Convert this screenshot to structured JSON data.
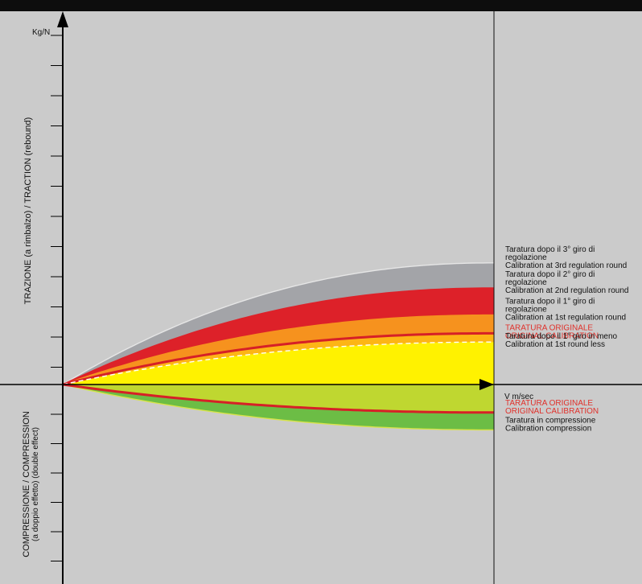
{
  "chart_data": {
    "type": "area",
    "ylabel_top": "TRAZIONE (a rimbalzo) / TRACTION (rebound)",
    "ylabel_bottom_line1": "COMPRESSIONE / COMPRESSION",
    "ylabel_bottom_line2": "(a doppio effetto)   (double effect)",
    "y_unit": "Kg/N",
    "x_unit": "V  m/sec",
    "curve_shape": "concave rise, saturating",
    "rebound_series": [
      {
        "key": "third",
        "color": "#a3a4a8",
        "edge": "#e6e6e6",
        "lines": [
          "Taratura dopo il 3° giro di",
          "regolazione",
          "Calibration at 3rd regulation round"
        ],
        "relative_level": 1.26
      },
      {
        "key": "second",
        "color": "#dd2129",
        "edge": "#dd2129",
        "lines": [
          "Taratura dopo il 2° giro di",
          "regolazione",
          "Calibration at 2nd regulation round"
        ],
        "relative_level": 1.0
      },
      {
        "key": "first",
        "color": "#f6921e",
        "edge": "#f6921e",
        "lines": [
          "Taratura dopo il 1° giro di",
          "regolazione",
          "Calibration at 1st regulation round"
        ],
        "relative_level": 0.72
      },
      {
        "key": "original",
        "color": "#fdb515",
        "edge": "#d62027",
        "line": true,
        "lines": [
          "TARATURA ORIGINALE",
          "ORIGINAL CALIBRATION"
        ],
        "label_color": "#e0312b",
        "relative_level": 0.53
      },
      {
        "key": "less",
        "color": "#fff200",
        "edge": "#ffffff",
        "dashed": true,
        "lines": [
          "Taratura dopo il 1° giro in meno",
          "Calibration at 1st round less"
        ],
        "relative_level": 0.44
      }
    ],
    "compression_series": [
      {
        "key": "comp_original",
        "color": "#bfd730",
        "edge": "#d62027",
        "line": true,
        "lines": [
          "TARATURA ORIGINALE",
          "ORIGINAL CALIBRATION"
        ],
        "label_color": "#e0312b",
        "relative_level": 0.29
      },
      {
        "key": "comp_setting",
        "color": "#6cbd45",
        "edge": "#d7e34a",
        "lines": [
          "Taratura in compressione",
          "Calibration compression"
        ],
        "relative_level": 0.47
      }
    ],
    "grid": false,
    "legend": "right"
  }
}
